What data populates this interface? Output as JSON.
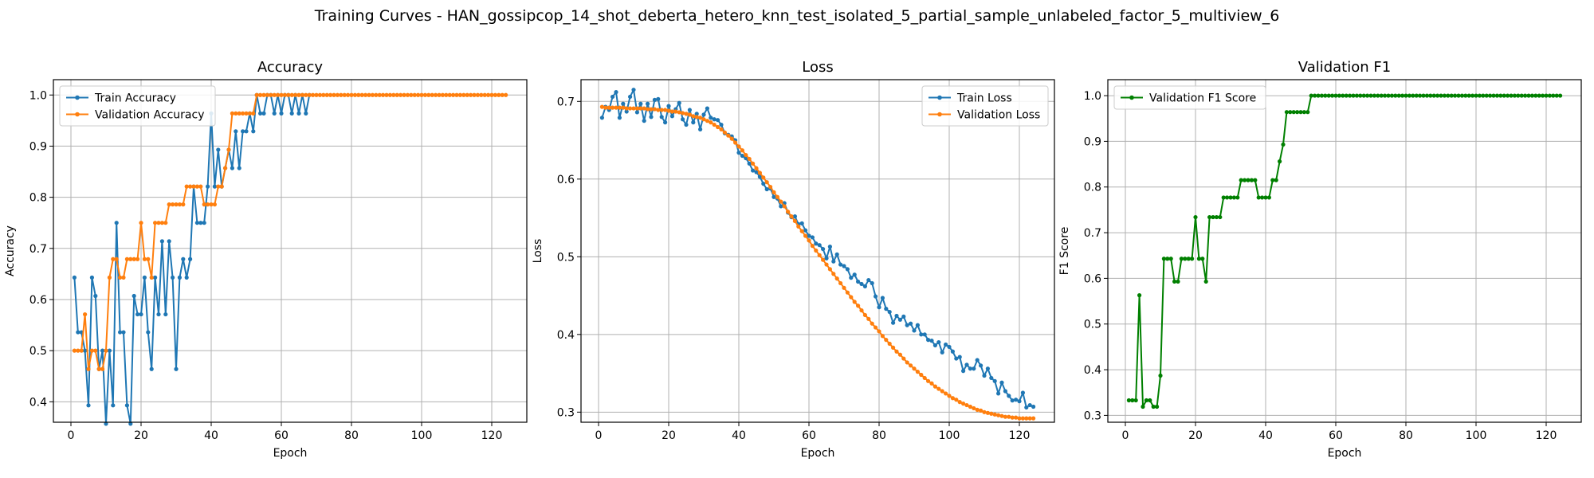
{
  "figure": {
    "suptitle": "Training Curves - HAN_gossipcop_14_shot_deberta_hetero_knn_test_isolated_5_partial_sample_unlabeled_factor_5_multiview_6"
  },
  "chart_data": [
    {
      "type": "line",
      "title": "Accuracy",
      "xlabel": "Epoch",
      "ylabel": "Accuracy",
      "xlim": [
        -5,
        130
      ],
      "ylim": [
        0.36,
        1.03
      ],
      "xticks": [
        0,
        20,
        40,
        60,
        80,
        100,
        120
      ],
      "yticks": [
        0.4,
        0.5,
        0.6,
        0.7,
        0.8,
        0.9,
        1.0
      ],
      "ytick_labels": [
        "0.4",
        "0.5",
        "0.6",
        "0.7",
        "0.8",
        "0.9",
        "1.0"
      ],
      "grid": true,
      "legend": "upper-left",
      "series": [
        {
          "name": "Train Accuracy",
          "color": "#1f77b4",
          "x_start": 1,
          "values": [
            0.643,
            0.536,
            0.536,
            0.5,
            0.393,
            0.643,
            0.607,
            0.464,
            0.5,
            0.357,
            0.5,
            0.393,
            0.75,
            0.536,
            0.536,
            0.393,
            0.357,
            0.607,
            0.571,
            0.571,
            0.643,
            0.536,
            0.464,
            0.643,
            0.571,
            0.714,
            0.571,
            0.714,
            0.643,
            0.464,
            0.643,
            0.679,
            0.643,
            0.679,
            0.821,
            0.75,
            0.75,
            0.75,
            0.821,
            0.964,
            0.821,
            0.893,
            0.821,
            0.857,
            0.893,
            0.857,
            0.929,
            0.857,
            0.929,
            0.929,
            0.964,
            0.929,
            1.0,
            0.964,
            0.964,
            1.0,
            1.0,
            0.964,
            1.0,
            0.964,
            1.0,
            1.0,
            0.964,
            1.0,
            0.964,
            1.0,
            0.964,
            1.0
          ]
        },
        {
          "name": "Validation Accuracy",
          "color": "#ff7f0e",
          "x_start": 1,
          "values": [
            0.5,
            0.5,
            0.5,
            0.571,
            0.464,
            0.5,
            0.5,
            0.464,
            0.464,
            0.5,
            0.643,
            0.679,
            0.679,
            0.643,
            0.643,
            0.679,
            0.679,
            0.679,
            0.679,
            0.75,
            0.679,
            0.679,
            0.643,
            0.75,
            0.75,
            0.75,
            0.75,
            0.786,
            0.786,
            0.786,
            0.786,
            0.786,
            0.821,
            0.821,
            0.821,
            0.821,
            0.821,
            0.786,
            0.786,
            0.786,
            0.786,
            0.821,
            0.821,
            0.857,
            0.893,
            0.964,
            0.964,
            0.964,
            0.964,
            0.964,
            0.964,
            0.964,
            1.0,
            1.0,
            1.0,
            1.0,
            1.0,
            1.0,
            1.0,
            1.0,
            1.0,
            1.0,
            1.0,
            1.0,
            1.0,
            1.0,
            1.0,
            1.0,
            1.0,
            1.0,
            1.0,
            1.0,
            1.0,
            1.0,
            1.0,
            1.0,
            1.0,
            1.0,
            1.0,
            1.0,
            1.0,
            1.0,
            1.0,
            1.0,
            1.0,
            1.0,
            1.0,
            1.0,
            1.0,
            1.0,
            1.0,
            1.0,
            1.0,
            1.0,
            1.0,
            1.0,
            1.0,
            1.0,
            1.0,
            1.0,
            1.0,
            1.0,
            1.0,
            1.0,
            1.0,
            1.0,
            1.0,
            1.0,
            1.0,
            1.0,
            1.0,
            1.0,
            1.0,
            1.0,
            1.0,
            1.0,
            1.0,
            1.0,
            1.0,
            1.0,
            1.0,
            1.0,
            1.0,
            1.0
          ]
        }
      ]
    },
    {
      "type": "line",
      "title": "Loss",
      "xlabel": "Epoch",
      "ylabel": "Loss",
      "xlim": [
        -5,
        130
      ],
      "ylim": [
        0.287,
        0.728
      ],
      "xticks": [
        0,
        20,
        40,
        60,
        80,
        100,
        120
      ],
      "yticks": [
        0.3,
        0.4,
        0.5,
        0.6,
        0.7
      ],
      "ytick_labels": [
        "0.3",
        "0.4",
        "0.5",
        "0.6",
        "0.7"
      ],
      "grid": true,
      "legend": "upper-right",
      "series": [
        {
          "name": "Train Loss",
          "color": "#1f77b4",
          "x_start": 1,
          "values": [
            0.679,
            0.693,
            0.689,
            0.706,
            0.712,
            0.679,
            0.697,
            0.687,
            0.706,
            0.715,
            0.686,
            0.697,
            0.675,
            0.697,
            0.68,
            0.702,
            0.703,
            0.68,
            0.673,
            0.694,
            0.681,
            0.69,
            0.698,
            0.677,
            0.67,
            0.689,
            0.673,
            0.684,
            0.664,
            0.683,
            0.691,
            0.679,
            0.677,
            0.676,
            0.67,
            0.659,
            0.657,
            0.655,
            0.65,
            0.634,
            0.63,
            0.627,
            0.62,
            0.611,
            0.609,
            0.603,
            0.594,
            0.587,
            0.588,
            0.577,
            0.575,
            0.565,
            0.569,
            0.557,
            0.551,
            0.552,
            0.542,
            0.543,
            0.534,
            0.527,
            0.525,
            0.517,
            0.515,
            0.51,
            0.498,
            0.513,
            0.494,
            0.503,
            0.49,
            0.488,
            0.484,
            0.473,
            0.477,
            0.468,
            0.465,
            0.462,
            0.47,
            0.466,
            0.449,
            0.435,
            0.447,
            0.433,
            0.429,
            0.415,
            0.424,
            0.419,
            0.423,
            0.412,
            0.414,
            0.405,
            0.412,
            0.4,
            0.4,
            0.393,
            0.392,
            0.386,
            0.39,
            0.377,
            0.387,
            0.384,
            0.378,
            0.369,
            0.371,
            0.353,
            0.361,
            0.356,
            0.356,
            0.367,
            0.36,
            0.347,
            0.356,
            0.344,
            0.34,
            0.324,
            0.338,
            0.327,
            0.321,
            0.315,
            0.316,
            0.314,
            0.325,
            0.306,
            0.309,
            0.307
          ]
        },
        {
          "name": "Validation Loss",
          "color": "#ff7f0e",
          "x_start": 1,
          "values": [
            0.693,
            0.692,
            0.692,
            0.692,
            0.692,
            0.692,
            0.692,
            0.691,
            0.691,
            0.691,
            0.691,
            0.691,
            0.691,
            0.69,
            0.69,
            0.69,
            0.689,
            0.689,
            0.689,
            0.688,
            0.687,
            0.687,
            0.686,
            0.685,
            0.684,
            0.683,
            0.681,
            0.68,
            0.679,
            0.677,
            0.675,
            0.673,
            0.67,
            0.667,
            0.664,
            0.66,
            0.656,
            0.652,
            0.647,
            0.642,
            0.637,
            0.631,
            0.626,
            0.62,
            0.614,
            0.608,
            0.602,
            0.596,
            0.59,
            0.583,
            0.577,
            0.571,
            0.565,
            0.558,
            0.552,
            0.546,
            0.539,
            0.533,
            0.527,
            0.521,
            0.514,
            0.508,
            0.502,
            0.496,
            0.49,
            0.484,
            0.478,
            0.472,
            0.466,
            0.46,
            0.454,
            0.448,
            0.442,
            0.437,
            0.431,
            0.425,
            0.42,
            0.414,
            0.409,
            0.404,
            0.398,
            0.393,
            0.388,
            0.383,
            0.378,
            0.374,
            0.369,
            0.364,
            0.36,
            0.356,
            0.352,
            0.348,
            0.344,
            0.34,
            0.337,
            0.333,
            0.33,
            0.327,
            0.324,
            0.321,
            0.318,
            0.316,
            0.313,
            0.311,
            0.309,
            0.307,
            0.305,
            0.303,
            0.302,
            0.3,
            0.299,
            0.298,
            0.297,
            0.296,
            0.295,
            0.294,
            0.294,
            0.293,
            0.293,
            0.292,
            0.292,
            0.292,
            0.292,
            0.292
          ]
        }
      ]
    },
    {
      "type": "line",
      "title": "Validation F1",
      "xlabel": "Epoch",
      "ylabel": "F1 Score",
      "xlim": [
        -5,
        130
      ],
      "ylim": [
        0.285,
        1.035
      ],
      "xticks": [
        0,
        20,
        40,
        60,
        80,
        100,
        120
      ],
      "yticks": [
        0.3,
        0.4,
        0.5,
        0.6,
        0.7,
        0.8,
        0.9,
        1.0
      ],
      "ytick_labels": [
        "0.3",
        "0.4",
        "0.5",
        "0.6",
        "0.7",
        "0.8",
        "0.9",
        "1.0"
      ],
      "grid": true,
      "legend": "upper-left",
      "series": [
        {
          "name": "Validation F1 Score",
          "color": "#008000",
          "x_start": 1,
          "values": [
            0.333,
            0.333,
            0.333,
            0.563,
            0.319,
            0.333,
            0.333,
            0.319,
            0.319,
            0.387,
            0.643,
            0.643,
            0.643,
            0.593,
            0.593,
            0.643,
            0.643,
            0.643,
            0.643,
            0.734,
            0.643,
            0.643,
            0.593,
            0.734,
            0.734,
            0.734,
            0.734,
            0.777,
            0.777,
            0.777,
            0.777,
            0.777,
            0.815,
            0.815,
            0.815,
            0.815,
            0.815,
            0.777,
            0.777,
            0.777,
            0.777,
            0.815,
            0.815,
            0.856,
            0.893,
            0.964,
            0.964,
            0.964,
            0.964,
            0.964,
            0.964,
            0.964,
            1.0,
            1.0,
            1.0,
            1.0,
            1.0,
            1.0,
            1.0,
            1.0,
            1.0,
            1.0,
            1.0,
            1.0,
            1.0,
            1.0,
            1.0,
            1.0,
            1.0,
            1.0,
            1.0,
            1.0,
            1.0,
            1.0,
            1.0,
            1.0,
            1.0,
            1.0,
            1.0,
            1.0,
            1.0,
            1.0,
            1.0,
            1.0,
            1.0,
            1.0,
            1.0,
            1.0,
            1.0,
            1.0,
            1.0,
            1.0,
            1.0,
            1.0,
            1.0,
            1.0,
            1.0,
            1.0,
            1.0,
            1.0,
            1.0,
            1.0,
            1.0,
            1.0,
            1.0,
            1.0,
            1.0,
            1.0,
            1.0,
            1.0,
            1.0,
            1.0,
            1.0,
            1.0,
            1.0,
            1.0,
            1.0,
            1.0,
            1.0,
            1.0,
            1.0,
            1.0,
            1.0,
            1.0
          ]
        }
      ]
    }
  ]
}
